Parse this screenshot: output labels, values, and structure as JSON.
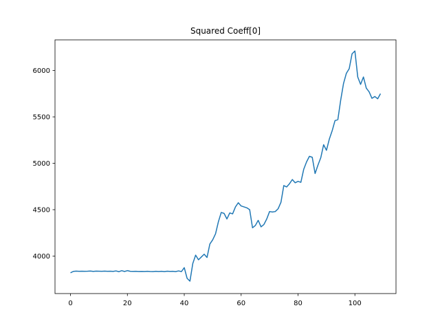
{
  "chart_data": {
    "type": "line",
    "title": "Squared Coeff[0]",
    "xlabel": "",
    "ylabel": "",
    "xlim": [
      -5.45,
      114.45
    ],
    "ylim": [
      3596,
      6330
    ],
    "xticks": [
      0,
      20,
      40,
      60,
      80,
      100
    ],
    "yticks": [
      4000,
      4500,
      5000,
      5500,
      6000
    ],
    "grid": false,
    "series": [
      {
        "color": "#1f77b4",
        "x": [
          0,
          1,
          2,
          3,
          4,
          5,
          6,
          7,
          8,
          9,
          10,
          11,
          12,
          13,
          14,
          15,
          16,
          17,
          18,
          19,
          20,
          21,
          22,
          23,
          24,
          25,
          26,
          27,
          28,
          29,
          30,
          31,
          32,
          33,
          34,
          35,
          36,
          37,
          38,
          39,
          40,
          41,
          42,
          43,
          44,
          45,
          46,
          47,
          48,
          49,
          50,
          51,
          52,
          53,
          54,
          55,
          56,
          57,
          58,
          59,
          60,
          61,
          62,
          63,
          64,
          65,
          66,
          67,
          68,
          69,
          70,
          71,
          72,
          73,
          74,
          75,
          76,
          77,
          78,
          79,
          80,
          81,
          82,
          83,
          84,
          85,
          86,
          87,
          88,
          89,
          90,
          91,
          92,
          93,
          94,
          95,
          96,
          97,
          98,
          99,
          100,
          101,
          102,
          103,
          104,
          105,
          106,
          107,
          108,
          109
        ],
        "y": [
          3820,
          3835,
          3838,
          3836,
          3837,
          3836,
          3837,
          3839,
          3835,
          3838,
          3837,
          3836,
          3838,
          3836,
          3837,
          3835,
          3840,
          3832,
          3843,
          3834,
          3843,
          3836,
          3835,
          3836,
          3834,
          3835,
          3834,
          3836,
          3834,
          3833,
          3836,
          3834,
          3836,
          3833,
          3837,
          3835,
          3836,
          3833,
          3840,
          3833,
          3875,
          3760,
          3730,
          3920,
          4010,
          3960,
          3990,
          4020,
          3985,
          4130,
          4175,
          4240,
          4370,
          4470,
          4460,
          4400,
          4465,
          4455,
          4530,
          4575,
          4540,
          4530,
          4520,
          4500,
          4305,
          4330,
          4385,
          4315,
          4340,
          4400,
          4480,
          4475,
          4480,
          4510,
          4580,
          4760,
          4745,
          4780,
          4825,
          4790,
          4805,
          4795,
          4935,
          5015,
          5075,
          5065,
          4890,
          4980,
          5060,
          5200,
          5140,
          5260,
          5350,
          5460,
          5470,
          5680,
          5860,
          5970,
          6020,
          6180,
          6210,
          5930,
          5850,
          5930,
          5810,
          5770,
          5700,
          5720,
          5695,
          5750
        ]
      }
    ]
  }
}
